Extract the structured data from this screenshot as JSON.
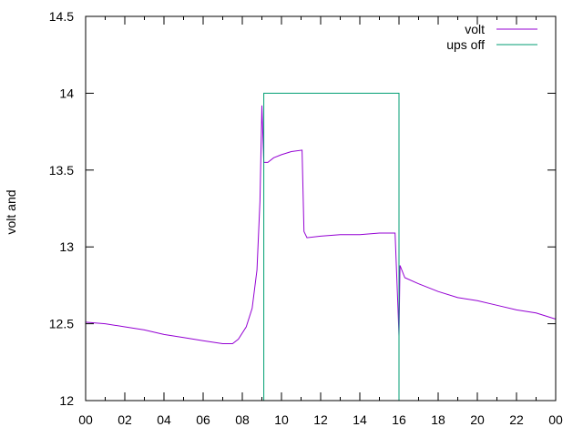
{
  "chart_data": {
    "type": "line",
    "title": "",
    "xlabel": "",
    "ylabel": "volt and",
    "xlim": [
      0,
      24
    ],
    "ylim": [
      12,
      14.5
    ],
    "x_ticks": [
      "00",
      "02",
      "04",
      "06",
      "08",
      "10",
      "12",
      "14",
      "16",
      "18",
      "20",
      "22",
      "00"
    ],
    "y_ticks": [
      "12",
      "12.5",
      "13",
      "13.5",
      "14",
      "14.5"
    ],
    "grid": false,
    "legend_position": "top-right",
    "series": [
      {
        "name": "volt",
        "color": "#9400d3",
        "points": [
          [
            0,
            12.51
          ],
          [
            1,
            12.5
          ],
          [
            2,
            12.48
          ],
          [
            3,
            12.46
          ],
          [
            4,
            12.43
          ],
          [
            5,
            12.41
          ],
          [
            6,
            12.39
          ],
          [
            7,
            12.37
          ],
          [
            7.5,
            12.37
          ],
          [
            7.8,
            12.4
          ],
          [
            8.2,
            12.48
          ],
          [
            8.5,
            12.6
          ],
          [
            8.75,
            12.85
          ],
          [
            8.9,
            13.3
          ],
          [
            9.0,
            13.92
          ],
          [
            9.1,
            13.55
          ],
          [
            9.3,
            13.55
          ],
          [
            9.6,
            13.58
          ],
          [
            10,
            13.6
          ],
          [
            10.5,
            13.62
          ],
          [
            11.05,
            13.63
          ],
          [
            11.15,
            13.1
          ],
          [
            11.3,
            13.06
          ],
          [
            12,
            13.07
          ],
          [
            13,
            13.08
          ],
          [
            14,
            13.08
          ],
          [
            15,
            13.09
          ],
          [
            15.8,
            13.09
          ],
          [
            15.95,
            12.6
          ],
          [
            16.0,
            12.42
          ],
          [
            16.05,
            12.88
          ],
          [
            16.3,
            12.8
          ],
          [
            17,
            12.76
          ],
          [
            18,
            12.71
          ],
          [
            19,
            12.67
          ],
          [
            20,
            12.65
          ],
          [
            21,
            12.62
          ],
          [
            22,
            12.59
          ],
          [
            23,
            12.57
          ],
          [
            24,
            12.53
          ]
        ]
      },
      {
        "name": "ups off",
        "color": "#009e73",
        "points": [
          [
            9.1,
            12
          ],
          [
            9.1,
            14.0
          ],
          [
            16.0,
            14.0
          ],
          [
            16.0,
            12
          ]
        ]
      }
    ]
  }
}
